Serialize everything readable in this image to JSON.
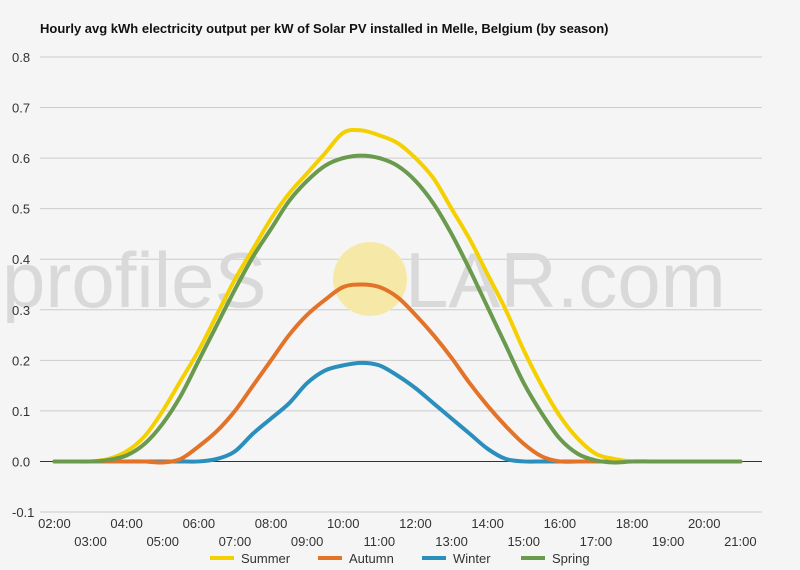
{
  "watermark": {
    "left": "profileS",
    "right": "LAR.com",
    "sun_color": "#f6e9a8",
    "text_color": "#d9d9d9"
  },
  "chart_data": {
    "type": "line",
    "title": "Hourly avg kWh electricity output per kW of Solar PV installed in Melle, Belgium (by season)",
    "xlabel": "",
    "ylabel": "",
    "ylim": [
      -0.1,
      0.8
    ],
    "yticks": [
      "0.8",
      "0.7",
      "0.6",
      "0.5",
      "0.4",
      "0.3",
      "0.2",
      "0.1",
      "0.0",
      "-0.1"
    ],
    "ytick_values": [
      0.8,
      0.7,
      0.6,
      0.5,
      0.4,
      0.3,
      0.2,
      0.1,
      0.0,
      -0.1
    ],
    "xrange": [
      1.6,
      21.6
    ],
    "xticks_upper": [
      "02:00",
      "04:00",
      "06:00",
      "08:00",
      "10:00",
      "12:00",
      "14:00",
      "16:00",
      "18:00",
      "20:00"
    ],
    "xticks_upper_values": [
      2,
      4,
      6,
      8,
      10,
      12,
      14,
      16,
      18,
      20
    ],
    "xticks_lower": [
      "03:00",
      "05:00",
      "07:00",
      "09:00",
      "11:00",
      "13:00",
      "15:00",
      "17:00",
      "19:00",
      "21:00"
    ],
    "xticks_lower_values": [
      3,
      5,
      7,
      9,
      11,
      13,
      15,
      17,
      19,
      21
    ],
    "grid": true,
    "legend_position": "bottom",
    "x": [
      2,
      2.5,
      3,
      3.5,
      4,
      4.5,
      5,
      5.5,
      6,
      6.5,
      7,
      7.5,
      8,
      8.5,
      9,
      9.5,
      10,
      10.5,
      11,
      11.5,
      12,
      12.5,
      13,
      13.5,
      14,
      14.5,
      15,
      15.5,
      16,
      16.5,
      17,
      17.5,
      18,
      18.5,
      19,
      19.5,
      20,
      20.5,
      21
    ],
    "series": [
      {
        "name": "Summer",
        "color": "#f5d000",
        "values": [
          0.0,
          0.0,
          0.0,
          0.005,
          0.02,
          0.05,
          0.1,
          0.16,
          0.22,
          0.29,
          0.36,
          0.42,
          0.48,
          0.53,
          0.57,
          0.61,
          0.65,
          0.655,
          0.645,
          0.63,
          0.6,
          0.56,
          0.5,
          0.44,
          0.37,
          0.3,
          0.22,
          0.15,
          0.09,
          0.045,
          0.015,
          0.005,
          0.0,
          0.0,
          0.0,
          0.0,
          0.0,
          0.0,
          0.0
        ]
      },
      {
        "name": "Autumn",
        "color": "#e4732a",
        "values": [
          0.0,
          0.0,
          0.0,
          0.0,
          0.0,
          0.0,
          -0.002,
          0.005,
          0.03,
          0.06,
          0.1,
          0.15,
          0.2,
          0.25,
          0.29,
          0.32,
          0.345,
          0.35,
          0.345,
          0.325,
          0.29,
          0.25,
          0.205,
          0.155,
          0.11,
          0.07,
          0.035,
          0.01,
          0.0,
          0.0,
          0.0,
          0.0,
          0.0,
          0.0,
          0.0,
          0.0,
          0.0,
          0.0,
          0.0
        ]
      },
      {
        "name": "Winter",
        "color": "#2b8fbd",
        "values": [
          0.0,
          0.0,
          0.0,
          0.0,
          0.0,
          0.0,
          0.0,
          0.0,
          0.0,
          0.005,
          0.02,
          0.055,
          0.085,
          0.115,
          0.155,
          0.18,
          0.19,
          0.195,
          0.19,
          0.17,
          0.145,
          0.115,
          0.085,
          0.055,
          0.025,
          0.005,
          0.0,
          0.0,
          0.0,
          0.0,
          0.0,
          0.0,
          0.0,
          0.0,
          0.0,
          0.0,
          0.0,
          0.0,
          0.0
        ]
      },
      {
        "name": "Spring",
        "color": "#6a9a4e",
        "values": [
          0.0,
          0.0,
          0.0,
          0.003,
          0.012,
          0.035,
          0.075,
          0.13,
          0.2,
          0.27,
          0.34,
          0.405,
          0.46,
          0.515,
          0.555,
          0.585,
          0.6,
          0.605,
          0.6,
          0.585,
          0.555,
          0.51,
          0.45,
          0.38,
          0.305,
          0.23,
          0.155,
          0.095,
          0.045,
          0.015,
          0.002,
          -0.002,
          0.0,
          0.0,
          0.0,
          0.0,
          0.0,
          0.0,
          0.0
        ]
      }
    ],
    "grid_color": "#cccccc",
    "axis_color": "#333333"
  }
}
